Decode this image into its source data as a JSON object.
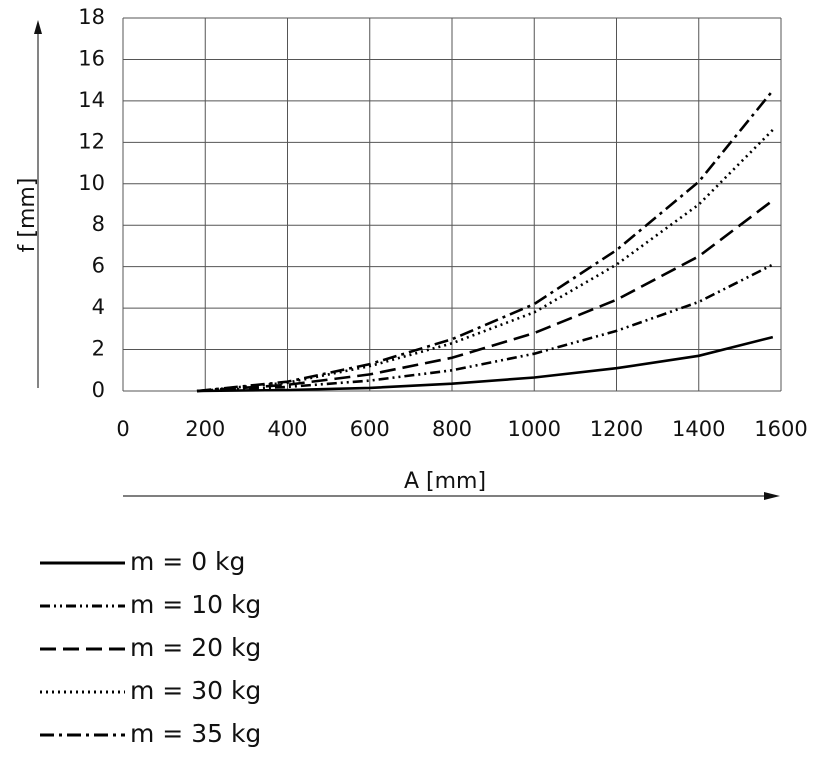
{
  "chart_data": {
    "type": "line",
    "x_label": "A [mm]",
    "y_label": "f [mm]",
    "x": [
      180,
      400,
      600,
      800,
      1000,
      1200,
      1400,
      1580
    ],
    "series": [
      {
        "name": "m = 0 kg",
        "color": "#000000",
        "style": "solid",
        "values": [
          0,
          0.05,
          0.15,
          0.35,
          0.65,
          1.1,
          1.7,
          2.6
        ]
      },
      {
        "name": "m = 10 kg",
        "color": "#000000",
        "style": "dash-dot-dot",
        "values": [
          0,
          0.2,
          0.5,
          1.0,
          1.8,
          2.9,
          4.3,
          6.1
        ]
      },
      {
        "name": "m = 20 kg",
        "color": "#000000",
        "style": "dash",
        "values": [
          0,
          0.3,
          0.8,
          1.6,
          2.8,
          4.4,
          6.5,
          9.2
        ]
      },
      {
        "name": "m = 30 kg",
        "color": "#000000",
        "style": "dot",
        "values": [
          0,
          0.4,
          1.2,
          2.3,
          3.8,
          6.1,
          9.0,
          12.6
        ]
      },
      {
        "name": "m = 35 kg",
        "color": "#000000",
        "style": "dash-dot",
        "values": [
          0,
          0.45,
          1.3,
          2.5,
          4.2,
          6.8,
          10.1,
          14.5
        ]
      }
    ],
    "xlim": [
      0,
      1600
    ],
    "xticks": [
      0,
      200,
      400,
      600,
      800,
      1000,
      1200,
      1400,
      1600
    ],
    "ylim": [
      0,
      18
    ],
    "yticks": [
      0,
      2,
      4,
      6,
      8,
      10,
      12,
      14,
      16,
      18
    ],
    "grid": true,
    "legend": "bottom-left"
  }
}
